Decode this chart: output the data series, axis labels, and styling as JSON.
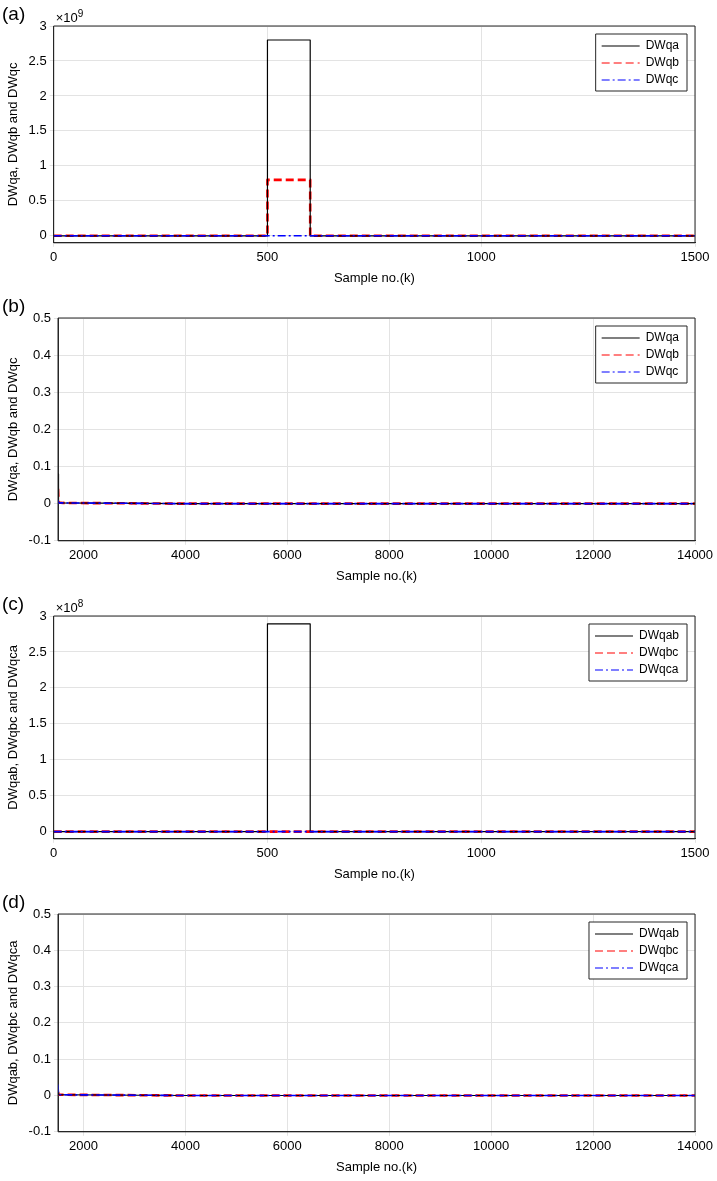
{
  "chart_data": [
    {
      "type": "line",
      "xlabel": "Sample no.(k)",
      "ylabel": "DWqa, DWqb and DWqc",
      "annotations": [
        "(a)",
        "×10$^{9}$"
      ],
      "series": [
        {
          "name": "DWqa",
          "color": "#000000",
          "line_style": "solid",
          "x": [
            0,
            500,
            500,
            600,
            600,
            1500
          ],
          "values": [
            0,
            0,
            2.8,
            2.8,
            0,
            0
          ]
        },
        {
          "name": "DWqb",
          "color": "#ff0000",
          "line_style": "dashed",
          "x": [
            0,
            500,
            500,
            600,
            600,
            1500
          ],
          "values": [
            0,
            0,
            0.8,
            0.8,
            0,
            0
          ]
        },
        {
          "name": "DWqc",
          "color": "#0000ff",
          "line_style": "dotted",
          "x": [
            0,
            1500
          ],
          "values": [
            0,
            0
          ]
        }
      ],
      "xlim": [
        0,
        1500
      ],
      "xticks": [
        0,
        500,
        1000,
        1500
      ],
      "ylim": [
        -0.1,
        3
      ],
      "yticks": [
        0,
        0.5,
        1,
        1.5,
        2,
        2.5,
        3
      ],
      "grid": true,
      "legend": "top right"
    },
    {
      "type": "line",
      "xlabel": "Sample no.(k)",
      "ylabel": "DWqa, DWqb and DWqc",
      "annotations": [
        "(b)"
      ],
      "series": [
        {
          "name": "DWqa",
          "color": "#000000",
          "line_style": "solid",
          "x": [
            1500,
            1510,
            1600,
            4000,
            14000
          ],
          "values": [
            0.08,
            0.003,
            0.002,
            0,
            0
          ]
        },
        {
          "name": "DWqb",
          "color": "#ff0000",
          "line_style": "dashed",
          "x": [
            1500,
            1510,
            1600,
            4000,
            14000
          ],
          "values": [
            0.04,
            0.003,
            0.002,
            0,
            0
          ]
        },
        {
          "name": "DWqc",
          "color": "#0000ff",
          "line_style": "dotted",
          "x": [
            1500,
            1510,
            1600,
            4000,
            14000
          ],
          "values": [
            0.01,
            0.002,
            0.002,
            0,
            0
          ]
        }
      ],
      "xlim": [
        1500,
        14000
      ],
      "xticks": [
        2000,
        4000,
        6000,
        8000,
        10000,
        12000,
        14000
      ],
      "ylim": [
        -0.1,
        0.5
      ],
      "yticks": [
        -0.1,
        0,
        0.1,
        0.2,
        0.3,
        0.4,
        0.5
      ],
      "grid": true,
      "legend": "top right"
    },
    {
      "type": "line",
      "xlabel": "Sample no.(k)",
      "ylabel": "DWqab, DWqbc and DWqca",
      "annotations": [
        "(c)",
        "×10$^{8}$"
      ],
      "series": [
        {
          "name": "DWqab",
          "color": "#000000",
          "line_style": "solid",
          "x": [
            0,
            500,
            500,
            600,
            600,
            1500
          ],
          "values": [
            0,
            0,
            2.89,
            2.89,
            0,
            0
          ]
        },
        {
          "name": "DWqbc",
          "color": "#ff0000",
          "line_style": "dashed",
          "x": [
            0,
            1500
          ],
          "values": [
            0,
            0
          ]
        },
        {
          "name": "DWqca",
          "color": "#0000ff",
          "line_style": "dotted",
          "x": [
            0,
            1500
          ],
          "values": [
            0,
            0
          ]
        }
      ],
      "xlim": [
        0,
        1500
      ],
      "xticks": [
        0,
        500,
        1000,
        1500
      ],
      "ylim": [
        -0.1,
        3
      ],
      "yticks": [
        0,
        0.5,
        1,
        1.5,
        2,
        2.5,
        3
      ],
      "grid": true,
      "legend": "top right"
    },
    {
      "type": "line",
      "xlabel": "Sample no.(k)",
      "ylabel": "DWqab, DWqbc and DWqca",
      "annotations": [
        "(d)"
      ],
      "series": [
        {
          "name": "DWqab",
          "color": "#000000",
          "line_style": "solid",
          "x": [
            1500,
            1510,
            1600,
            4000,
            14000
          ],
          "values": [
            0.01,
            0.002,
            0.002,
            0,
            0
          ]
        },
        {
          "name": "DWqbc",
          "color": "#ff0000",
          "line_style": "dashed",
          "x": [
            1500,
            1510,
            1600,
            4000,
            14000
          ],
          "values": [
            0.01,
            0.002,
            0.002,
            0,
            0
          ]
        },
        {
          "name": "DWqca",
          "color": "#0000ff",
          "line_style": "dotted",
          "x": [
            1500,
            1510,
            1600,
            4000,
            14000
          ],
          "values": [
            0.03,
            0.002,
            0.002,
            0,
            0
          ]
        }
      ],
      "xlim": [
        1500,
        14000
      ],
      "xticks": [
        2000,
        4000,
        6000,
        8000,
        10000,
        12000,
        14000
      ],
      "ylim": [
        -0.1,
        0.5
      ],
      "yticks": [
        -0.1,
        0,
        0.1,
        0.2,
        0.3,
        0.4,
        0.5
      ],
      "grid": true,
      "legend": "top right"
    }
  ]
}
